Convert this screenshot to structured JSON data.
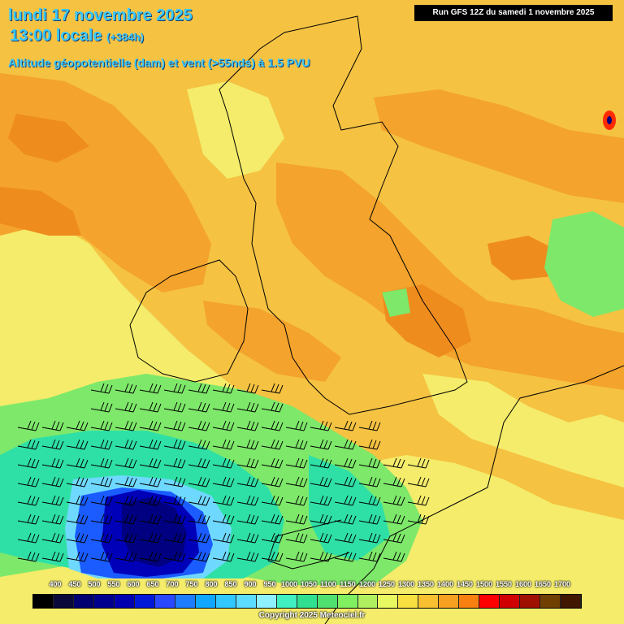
{
  "header": {
    "date": "lundi 17 novembre 2025",
    "time_label": "13:00 locale",
    "lead_time": "(+384h)",
    "parameter": "Altitude géopotentielle (dam) et vent (>55nds) à 1.5 PVU"
  },
  "run_info": "Run GFS 12Z du samedi 1 novembre 2025",
  "colorbar": {
    "labels": [
      "400",
      "450",
      "500",
      "550",
      "600",
      "650",
      "700",
      "750",
      "800",
      "850",
      "900",
      "950",
      "1000",
      "1050",
      "1100",
      "1150",
      "1200",
      "1250",
      "1300",
      "1350",
      "1400",
      "1450",
      "1500",
      "1550",
      "1600",
      "1650",
      "1700"
    ],
    "colors": [
      "#000000",
      "#0a0a3a",
      "#000070",
      "#00008e",
      "#0000b0",
      "#0018d8",
      "#2a48ff",
      "#1e7cff",
      "#10a8ff",
      "#30c8ff",
      "#5cdcff",
      "#8ff0ff",
      "#40f0c0",
      "#30e090",
      "#50e070",
      "#80f060",
      "#b0f060",
      "#e8f860",
      "#f8e040",
      "#f8c030",
      "#f8a020",
      "#f88010",
      "#ff0000",
      "#d00000",
      "#a01000",
      "#704000",
      "#401800"
    ]
  },
  "copyright": "Copyright 2025 Meteociel.fr",
  "field_colors": {
    "background": "#f5c242",
    "pale": "#f4ec6a",
    "orange": "#f4a32c",
    "dark_orange": "#ef8c1e",
    "green": "#7ee86a",
    "teal": "#2fe0a6",
    "cyan": "#6fd8ff",
    "blue": "#1a5cff",
    "navy": "#0000b8",
    "deep": "#000080",
    "red": "#ff2a00"
  }
}
